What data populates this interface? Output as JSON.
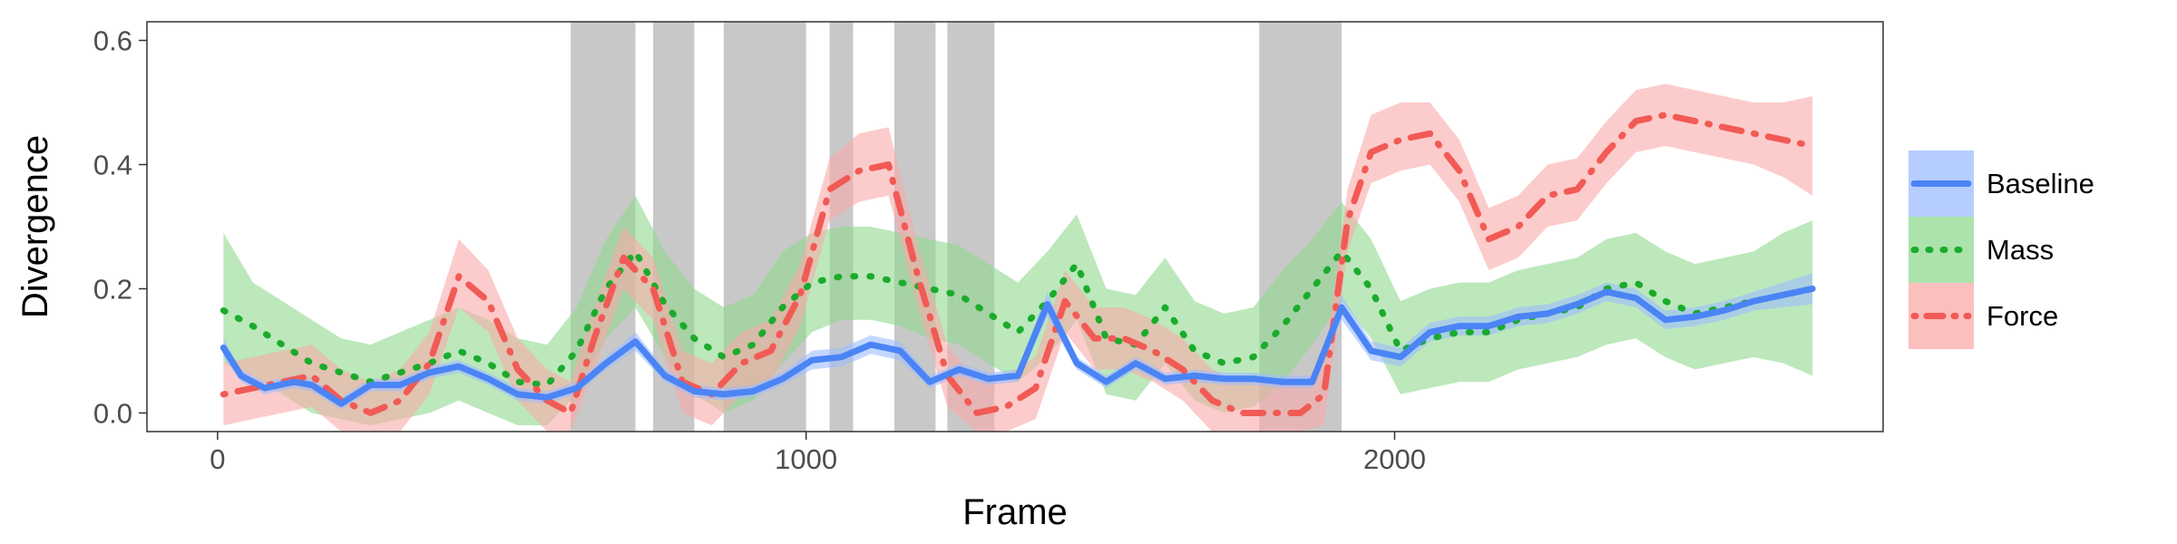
{
  "chart_data": {
    "type": "line",
    "title": "",
    "xlabel": "Frame",
    "ylabel": "Divergence",
    "xlim": [
      -120,
      2830
    ],
    "ylim": [
      -0.03,
      0.63
    ],
    "x_ticks": [
      0,
      1000,
      2000
    ],
    "x_tick_labels": [
      "0",
      "1000",
      "2000"
    ],
    "y_ticks": [
      0.0,
      0.2,
      0.4,
      0.6
    ],
    "y_tick_labels": [
      "0.0",
      "0.2",
      "0.4",
      "0.6"
    ],
    "grid": false,
    "legend_position": "right",
    "shaded_regions": [
      [
        600,
        710
      ],
      [
        740,
        810
      ],
      [
        860,
        1000
      ],
      [
        1040,
        1080
      ],
      [
        1150,
        1220
      ],
      [
        1240,
        1320
      ],
      [
        1770,
        1910
      ]
    ],
    "shade_color": "#c8c8c8",
    "series": [
      {
        "name": "Baseline",
        "color": "#4b84f5",
        "band_color": "#9dbcff",
        "line_style": "solid",
        "x": [
          10,
          40,
          80,
          130,
          160,
          210,
          260,
          310,
          360,
          410,
          460,
          510,
          560,
          610,
          660,
          710,
          760,
          810,
          860,
          910,
          960,
          1010,
          1060,
          1110,
          1160,
          1210,
          1260,
          1310,
          1360,
          1410,
          1460,
          1510,
          1560,
          1610,
          1660,
          1710,
          1760,
          1810,
          1860,
          1910,
          1960,
          2010,
          2060,
          2110,
          2160,
          2210,
          2260,
          2310,
          2360,
          2410,
          2460,
          2510,
          2560,
          2610,
          2660,
          2710
        ],
        "y": [
          0.105,
          0.06,
          0.04,
          0.05,
          0.045,
          0.015,
          0.045,
          0.045,
          0.065,
          0.075,
          0.055,
          0.03,
          0.025,
          0.04,
          0.08,
          0.115,
          0.06,
          0.035,
          0.03,
          0.035,
          0.055,
          0.085,
          0.09,
          0.11,
          0.1,
          0.05,
          0.07,
          0.055,
          0.06,
          0.175,
          0.08,
          0.05,
          0.08,
          0.055,
          0.06,
          0.055,
          0.055,
          0.05,
          0.05,
          0.17,
          0.1,
          0.09,
          0.13,
          0.14,
          0.14,
          0.155,
          0.16,
          0.175,
          0.195,
          0.185,
          0.15,
          0.155,
          0.165,
          0.18,
          0.19,
          0.2
        ],
        "lower": [
          0.09,
          0.05,
          0.03,
          0.04,
          0.035,
          0.005,
          0.035,
          0.035,
          0.055,
          0.065,
          0.045,
          0.02,
          0.015,
          0.03,
          0.07,
          0.1,
          0.05,
          0.025,
          0.02,
          0.025,
          0.045,
          0.07,
          0.075,
          0.095,
          0.085,
          0.04,
          0.06,
          0.045,
          0.05,
          0.155,
          0.07,
          0.04,
          0.07,
          0.045,
          0.05,
          0.045,
          0.045,
          0.04,
          0.04,
          0.15,
          0.085,
          0.075,
          0.115,
          0.125,
          0.125,
          0.14,
          0.145,
          0.16,
          0.18,
          0.17,
          0.135,
          0.14,
          0.15,
          0.165,
          0.17,
          0.175
        ],
        "upper": [
          0.12,
          0.07,
          0.05,
          0.06,
          0.055,
          0.025,
          0.055,
          0.055,
          0.075,
          0.085,
          0.065,
          0.04,
          0.035,
          0.05,
          0.09,
          0.13,
          0.07,
          0.045,
          0.04,
          0.045,
          0.065,
          0.1,
          0.105,
          0.125,
          0.115,
          0.06,
          0.08,
          0.065,
          0.07,
          0.195,
          0.09,
          0.06,
          0.09,
          0.065,
          0.07,
          0.065,
          0.065,
          0.06,
          0.06,
          0.19,
          0.115,
          0.105,
          0.145,
          0.155,
          0.155,
          0.17,
          0.175,
          0.19,
          0.21,
          0.2,
          0.165,
          0.17,
          0.18,
          0.195,
          0.21,
          0.225
        ]
      },
      {
        "name": "Mass",
        "color": "#1bab2c",
        "band_color": "#8fd98f",
        "line_style": "dotted",
        "x": [
          10,
          60,
          110,
          160,
          210,
          260,
          310,
          360,
          410,
          460,
          510,
          560,
          610,
          660,
          710,
          760,
          810,
          860,
          910,
          960,
          1010,
          1060,
          1110,
          1160,
          1210,
          1260,
          1310,
          1360,
          1410,
          1460,
          1510,
          1560,
          1610,
          1660,
          1710,
          1760,
          1810,
          1860,
          1910,
          1960,
          2010,
          2060,
          2110,
          2160,
          2210,
          2260,
          2310,
          2360,
          2410,
          2460,
          2510,
          2560,
          2610,
          2660,
          2710
        ],
        "y": [
          0.165,
          0.14,
          0.11,
          0.08,
          0.065,
          0.05,
          0.065,
          0.08,
          0.1,
          0.08,
          0.05,
          0.045,
          0.1,
          0.2,
          0.26,
          0.175,
          0.12,
          0.09,
          0.11,
          0.17,
          0.21,
          0.22,
          0.22,
          0.21,
          0.2,
          0.19,
          0.16,
          0.13,
          0.18,
          0.24,
          0.12,
          0.11,
          0.17,
          0.1,
          0.08,
          0.09,
          0.14,
          0.2,
          0.26,
          0.2,
          0.1,
          0.12,
          0.13,
          0.13,
          0.15,
          0.16,
          0.17,
          0.2,
          0.21,
          0.18,
          0.16,
          0.17,
          0.18,
          0.19,
          0.2
        ],
        "lower": [
          0.08,
          0.06,
          0.03,
          0.0,
          -0.01,
          -0.02,
          -0.01,
          0.0,
          0.02,
          0.0,
          -0.02,
          -0.02,
          0.03,
          0.12,
          0.17,
          0.09,
          0.03,
          0.0,
          0.02,
          0.08,
          0.13,
          0.15,
          0.15,
          0.14,
          0.12,
          0.11,
          0.08,
          0.05,
          0.09,
          0.15,
          0.03,
          0.02,
          0.08,
          0.02,
          0.0,
          0.01,
          0.05,
          0.11,
          0.18,
          0.12,
          0.03,
          0.04,
          0.05,
          0.05,
          0.07,
          0.08,
          0.09,
          0.11,
          0.12,
          0.09,
          0.07,
          0.08,
          0.09,
          0.08,
          0.06
        ],
        "upper": [
          0.29,
          0.21,
          0.18,
          0.15,
          0.12,
          0.11,
          0.13,
          0.15,
          0.17,
          0.15,
          0.12,
          0.11,
          0.17,
          0.28,
          0.35,
          0.26,
          0.2,
          0.17,
          0.19,
          0.26,
          0.29,
          0.3,
          0.3,
          0.29,
          0.28,
          0.27,
          0.24,
          0.21,
          0.26,
          0.32,
          0.2,
          0.19,
          0.25,
          0.18,
          0.16,
          0.17,
          0.23,
          0.28,
          0.34,
          0.28,
          0.18,
          0.2,
          0.21,
          0.21,
          0.23,
          0.24,
          0.25,
          0.28,
          0.29,
          0.26,
          0.24,
          0.25,
          0.26,
          0.29,
          0.31
        ]
      },
      {
        "name": "Force",
        "color": "#f25a55",
        "band_color": "#f9aaa8",
        "line_style": "dotdash",
        "x": [
          10,
          60,
          110,
          160,
          210,
          260,
          310,
          360,
          410,
          460,
          510,
          560,
          600,
          640,
          690,
          740,
          790,
          840,
          890,
          940,
          990,
          1040,
          1090,
          1140,
          1190,
          1240,
          1290,
          1340,
          1390,
          1440,
          1490,
          1540,
          1590,
          1640,
          1690,
          1740,
          1790,
          1840,
          1880,
          1920,
          1960,
          2010,
          2060,
          2110,
          2160,
          2210,
          2260,
          2310,
          2360,
          2410,
          2460,
          2510,
          2560,
          2610,
          2660,
          2710
        ],
        "y": [
          0.03,
          0.04,
          0.05,
          0.06,
          0.02,
          0.0,
          0.02,
          0.08,
          0.22,
          0.18,
          0.07,
          0.02,
          0.0,
          0.12,
          0.25,
          0.2,
          0.05,
          0.03,
          0.08,
          0.1,
          0.19,
          0.36,
          0.39,
          0.4,
          0.22,
          0.06,
          0.0,
          0.01,
          0.04,
          0.18,
          0.12,
          0.12,
          0.1,
          0.07,
          0.02,
          0.0,
          0.0,
          0.0,
          0.03,
          0.31,
          0.42,
          0.44,
          0.45,
          0.39,
          0.28,
          0.3,
          0.35,
          0.36,
          0.42,
          0.47,
          0.48,
          0.47,
          0.46,
          0.45,
          0.44,
          0.43
        ],
        "lower": [
          -0.02,
          -0.01,
          0.0,
          0.01,
          -0.03,
          -0.05,
          -0.03,
          0.03,
          0.17,
          0.13,
          0.02,
          -0.03,
          -0.05,
          0.07,
          0.2,
          0.15,
          0.0,
          -0.02,
          0.03,
          0.05,
          0.14,
          0.31,
          0.34,
          0.35,
          0.17,
          0.01,
          -0.05,
          -0.04,
          -0.01,
          0.13,
          0.07,
          0.07,
          0.05,
          0.02,
          -0.03,
          -0.05,
          -0.05,
          -0.05,
          -0.02,
          0.26,
          0.37,
          0.39,
          0.4,
          0.34,
          0.23,
          0.25,
          0.3,
          0.31,
          0.37,
          0.42,
          0.43,
          0.42,
          0.41,
          0.4,
          0.38,
          0.35
        ],
        "upper": [
          0.08,
          0.09,
          0.1,
          0.11,
          0.07,
          0.05,
          0.07,
          0.13,
          0.28,
          0.23,
          0.12,
          0.07,
          0.05,
          0.17,
          0.3,
          0.25,
          0.1,
          0.08,
          0.13,
          0.15,
          0.24,
          0.41,
          0.45,
          0.46,
          0.27,
          0.11,
          0.05,
          0.06,
          0.09,
          0.23,
          0.17,
          0.17,
          0.15,
          0.12,
          0.07,
          0.05,
          0.05,
          0.05,
          0.08,
          0.36,
          0.48,
          0.5,
          0.5,
          0.44,
          0.33,
          0.35,
          0.4,
          0.41,
          0.47,
          0.52,
          0.53,
          0.52,
          0.51,
          0.5,
          0.5,
          0.51
        ]
      }
    ]
  }
}
